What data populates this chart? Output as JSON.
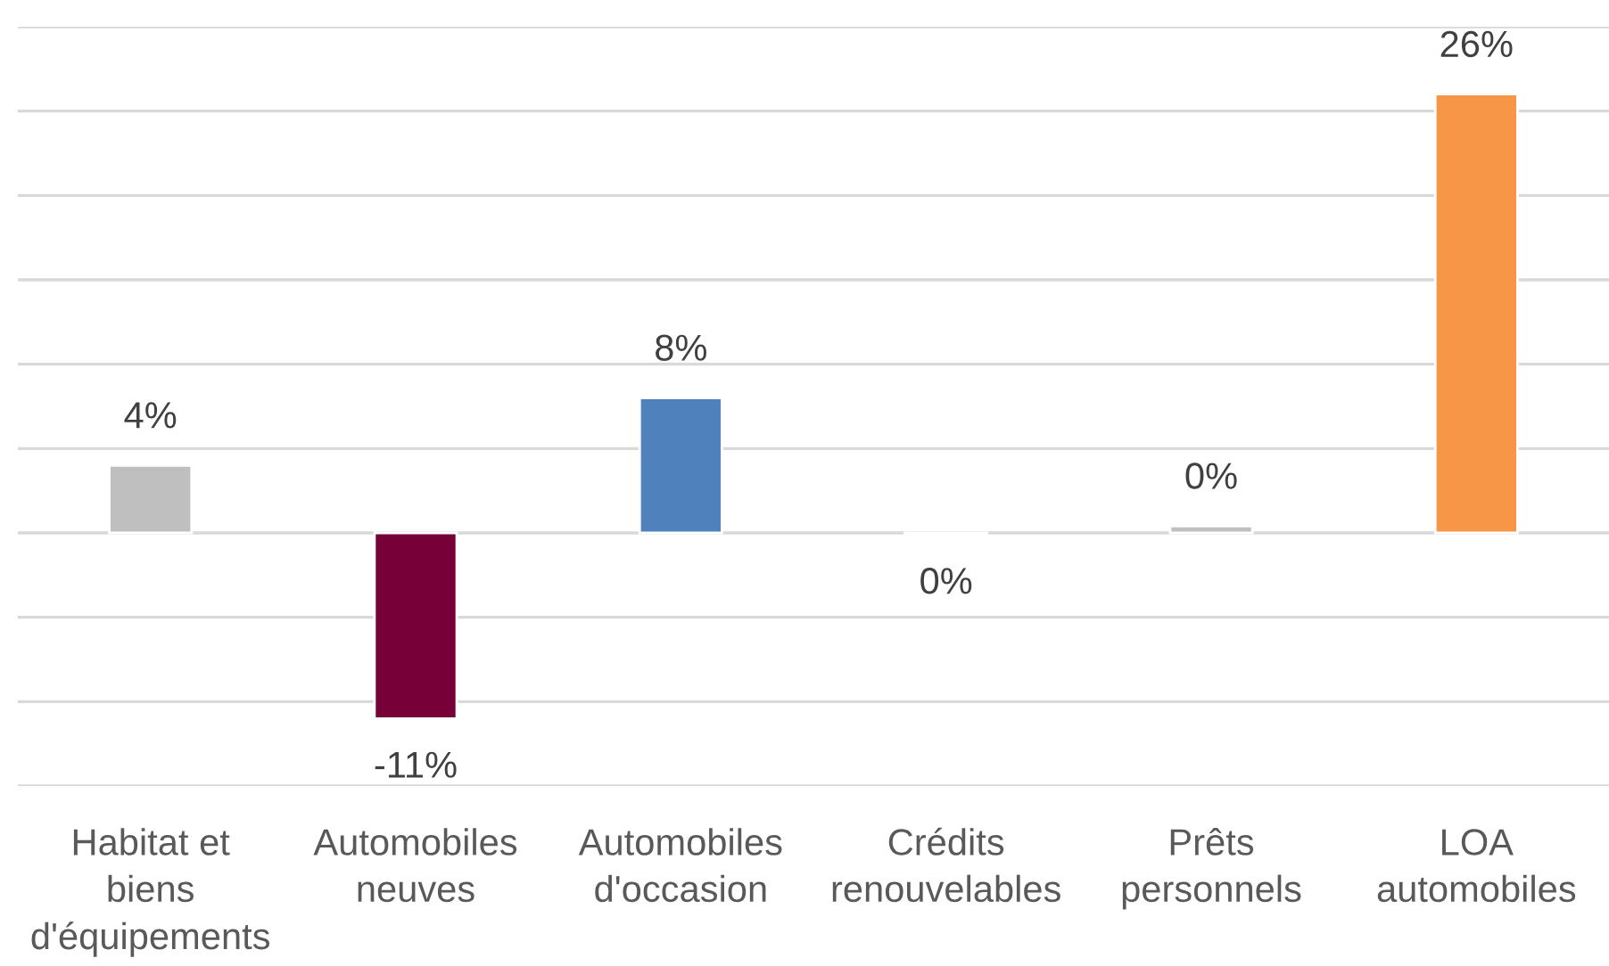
{
  "chart_data": {
    "type": "bar",
    "categories": [
      "Habitat et\nbiens\nd'équipements",
      "Automobiles\nneuves",
      "Automobiles\nd'occasion",
      "Crédits\nrenouvelables",
      "Prêts\npersonnels",
      "LOA\nautomobiles"
    ],
    "values": [
      4,
      -11,
      8,
      -0.1,
      0.4,
      26
    ],
    "value_labels": [
      "4%",
      "-11%",
      "8%",
      "0%",
      "0%",
      "26%"
    ],
    "colors": [
      "#bfbfbf",
      "#780038",
      "#4f81bd",
      "#bfbfbf",
      "#bfbfbf",
      "#f79646"
    ],
    "ylim": [
      -15,
      30
    ],
    "yticks": [
      {
        "value": -15,
        "label": null
      },
      {
        "value": -10,
        "label": null
      },
      {
        "value": -5,
        "label": null
      },
      {
        "value": 0,
        "label": null
      },
      {
        "value": 5,
        "label": null
      },
      {
        "value": 10,
        "label": null
      },
      {
        "value": 15,
        "label": null
      },
      {
        "value": 20,
        "label": null
      },
      {
        "value": 25,
        "label": null
      },
      {
        "value": 30,
        "label": null
      }
    ],
    "tick_labels": "x",
    "grid": "y"
  }
}
